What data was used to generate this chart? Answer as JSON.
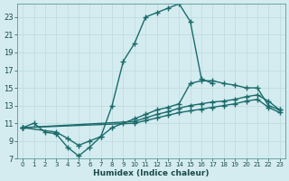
{
  "xlabel": "Humidex (Indice chaleur)",
  "bg_color": "#d4ecf0",
  "grid_color": "#c0dde0",
  "line_color": "#1a6b6b",
  "xlim": [
    -0.5,
    23.5
  ],
  "ylim": [
    7,
    24.5
  ],
  "xticks": [
    0,
    1,
    2,
    3,
    4,
    5,
    6,
    7,
    8,
    9,
    10,
    11,
    12,
    13,
    14,
    15,
    16,
    17,
    18,
    19,
    20,
    21,
    22,
    23
  ],
  "yticks": [
    7,
    9,
    11,
    13,
    15,
    17,
    19,
    21,
    23
  ],
  "line1_x": [
    0,
    1,
    2,
    3,
    4,
    5,
    6,
    7,
    8,
    9,
    10,
    11,
    12,
    13,
    14,
    15,
    16,
    17
  ],
  "line1_y": [
    10.5,
    11.0,
    10.0,
    9.8,
    8.3,
    7.3,
    8.3,
    9.5,
    13.0,
    18.0,
    20.0,
    23.0,
    23.5,
    24.0,
    24.5,
    22.5,
    16.0,
    15.5
  ],
  "line2_x": [
    0,
    3,
    4,
    5,
    6,
    7,
    8,
    9,
    10,
    11,
    12,
    13,
    14,
    15,
    16,
    17,
    18,
    19,
    20,
    21,
    22,
    23
  ],
  "line2_y": [
    10.5,
    10.0,
    9.3,
    8.5,
    9.0,
    9.5,
    10.5,
    11.0,
    11.5,
    12.0,
    12.5,
    12.8,
    13.2,
    15.5,
    15.8,
    15.8,
    15.5,
    15.3,
    15.0,
    15.0,
    13.0,
    12.5
  ],
  "line3_x": [
    0,
    10,
    11,
    12,
    13,
    14,
    15,
    16,
    17,
    18,
    19,
    20,
    21,
    22,
    23
  ],
  "line3_y": [
    10.5,
    11.2,
    11.6,
    12.0,
    12.3,
    12.7,
    13.0,
    13.2,
    13.4,
    13.5,
    13.7,
    14.0,
    14.2,
    13.5,
    12.5
  ],
  "line4_x": [
    0,
    10,
    11,
    12,
    13,
    14,
    15,
    16,
    17,
    18,
    19,
    20,
    21,
    22,
    23
  ],
  "line4_y": [
    10.5,
    11.0,
    11.3,
    11.6,
    11.9,
    12.2,
    12.4,
    12.6,
    12.8,
    13.0,
    13.2,
    13.5,
    13.7,
    12.8,
    12.2
  ],
  "markersize": 3,
  "linewidth": 1.0
}
